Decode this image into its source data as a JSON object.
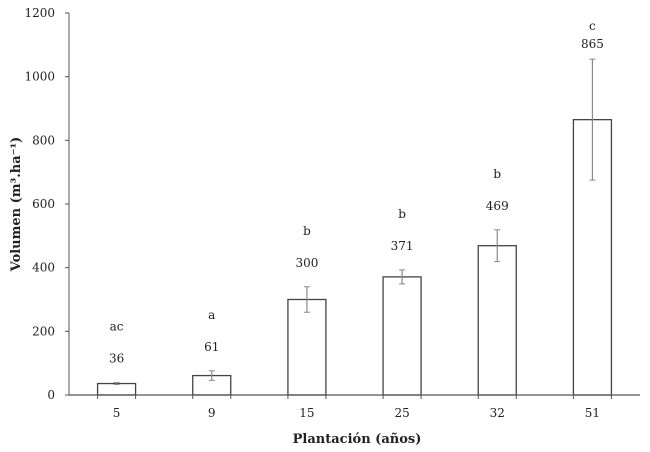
{
  "chart_data": {
    "type": "bar",
    "title": "",
    "xlabel": "Plantación (años)",
    "ylabel": "Volumen (m³.ha⁻¹)",
    "categories": [
      "5",
      "9",
      "15",
      "25",
      "32",
      "51"
    ],
    "values": [
      36,
      61,
      300,
      371,
      469,
      865
    ],
    "error": [
      3,
      15,
      40,
      22,
      50,
      190
    ],
    "letters": [
      "ac",
      "a",
      "b",
      "b",
      "b",
      "c"
    ],
    "yticks": [
      0,
      200,
      400,
      600,
      800,
      1000,
      1200
    ],
    "ylim": [
      0,
      1200
    ],
    "grid": false,
    "legend": null,
    "colors": {
      "bar_fill": "#ffffff",
      "bar_stroke": "#444444",
      "error": "#888888"
    }
  }
}
